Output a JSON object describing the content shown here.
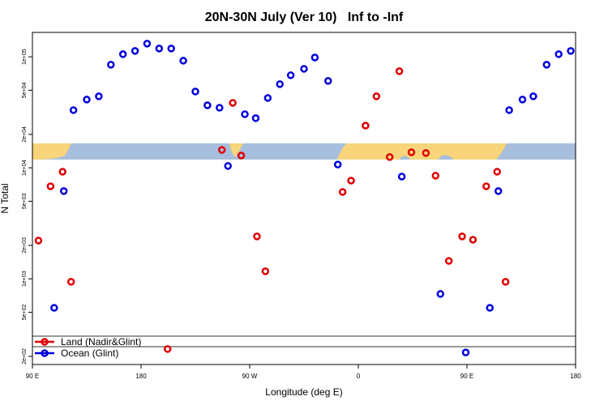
{
  "chart_data": {
    "type": "scatter",
    "title": "20N-30N July (Ver 10)   Inf to -Inf",
    "x_label": "Longitude (deg E)",
    "y_label": "N Total",
    "log_y": true,
    "xlim": [
      90,
      540
    ],
    "xticks": [
      {
        "value": 90,
        "label": "90 E"
      },
      180,
      {
        "value": 270,
        "label": "90 W"
      },
      {
        "value": 360,
        "label": "0"
      },
      {
        "value": 450,
        "label": "90 E"
      },
      {
        "value": 540,
        "label": "180"
      }
    ],
    "ylim": [
      169,
      166000
    ],
    "yticks": [
      {
        "value": 200,
        "label": "2e+02"
      },
      {
        "value": 500,
        "label": "5e+02"
      },
      {
        "value": 1000,
        "label": "1e+03"
      },
      {
        "value": 2000,
        "label": "2e+03"
      },
      {
        "value": 5000,
        "label": "5e+03"
      },
      {
        "value": 10000,
        "label": "1e+04"
      },
      {
        "value": 20000,
        "label": "2e+04"
      },
      {
        "value": 50000,
        "label": "5e+04"
      },
      {
        "value": 100000,
        "label": "1e+05"
      }
    ],
    "legend_position": "bottom-left",
    "series": [
      {
        "name": "Land (Nadir&Glint)",
        "color": "#e00000",
        "x": [
          95,
          105,
          115,
          122,
          202,
          247,
          256,
          263,
          276,
          283,
          347,
          354,
          366,
          375,
          386,
          394,
          404,
          416,
          424,
          435,
          446,
          455,
          466,
          475,
          482
        ],
        "values": [
          2210,
          6820,
          9230,
          940,
          233,
          14500,
          38500,
          12900,
          2410,
          1170,
          6060,
          7670,
          24000,
          44100,
          12500,
          74200,
          13800,
          13600,
          8490,
          1450,
          2410,
          2250,
          6820,
          9230,
          940
        ]
      },
      {
        "name": "Ocean (Glint)",
        "color": "#0000dd",
        "x": [
          108,
          116,
          124,
          135,
          145,
          155,
          165,
          175,
          185,
          195,
          205,
          215,
          225,
          235,
          245,
          252,
          266,
          275,
          285,
          295,
          304,
          315,
          324,
          335,
          343,
          396,
          428,
          449,
          469,
          476,
          485,
          496,
          505,
          516,
          526,
          536
        ],
        "values": [
          548,
          6170,
          33100,
          41200,
          44100,
          84900,
          105600,
          113000,
          131400,
          118800,
          118800,
          92300,
          48700,
          36600,
          34800,
          10400,
          30400,
          28000,
          42600,
          56700,
          68200,
          78000,
          98600,
          60700,
          10700,
          8340,
          730,
          217,
          548,
          6170,
          33100,
          41200,
          44100,
          84900,
          105600,
          113000
        ]
      }
    ]
  }
}
